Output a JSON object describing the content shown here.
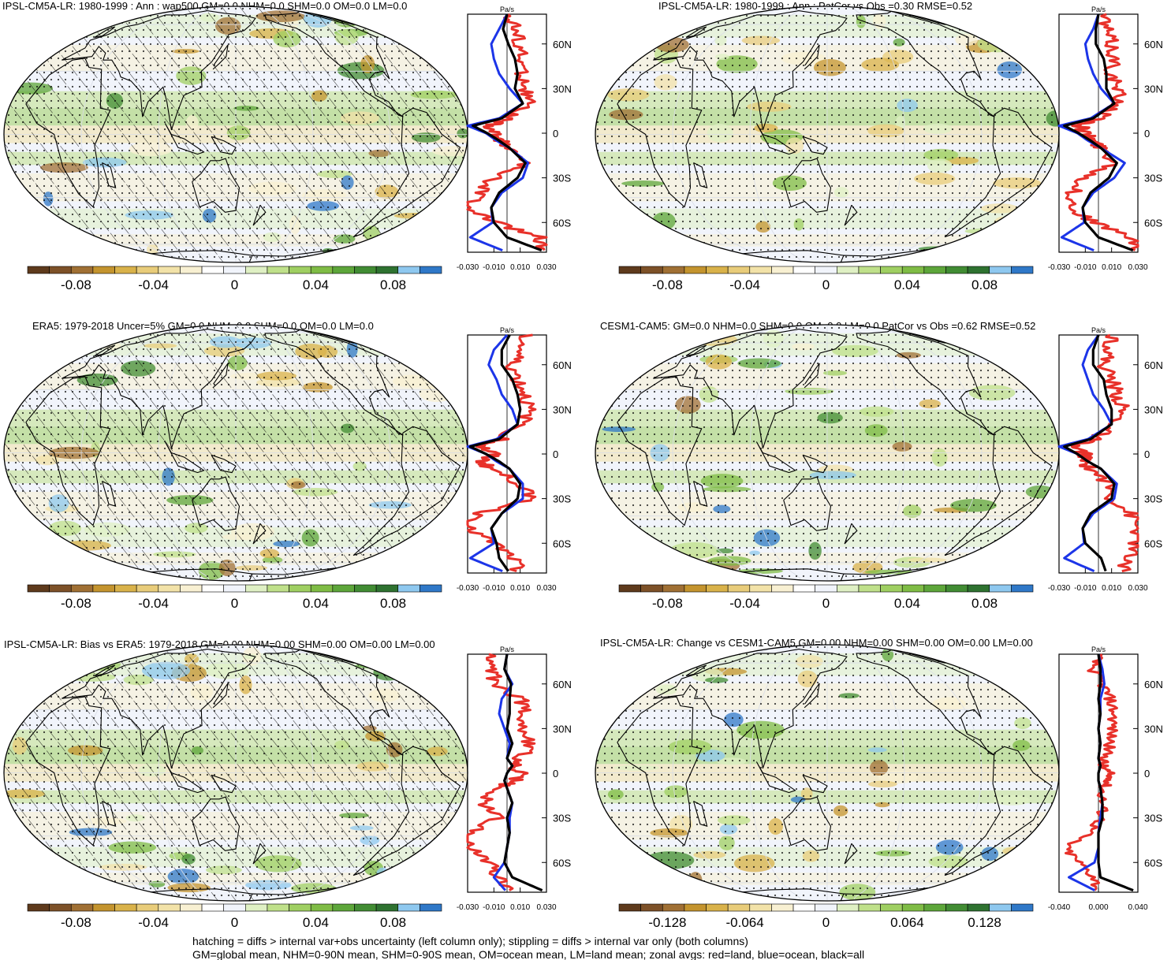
{
  "palette": [
    "#5e3a1c",
    "#7d5128",
    "#a07034",
    "#c4942e",
    "#d9b24a",
    "#e8cc7a",
    "#f2e2a8",
    "#f8f0d2",
    "#ffffff",
    "#f1f4fb",
    "#dff0c4",
    "#bfe08a",
    "#9fcf62",
    "#7fbc45",
    "#5da63a",
    "#418c33",
    "#2e7230",
    "#8ec8ef",
    "#2f78c8"
  ],
  "colors": {
    "land": "#e8312a",
    "ocean": "#1c35e8",
    "all": "#000000"
  },
  "units_label": "Pa/s",
  "panels": [
    {
      "title": "IPSL-CM5A-LR: 1980-1999 : Ann : wap500 GM=0.0 NHM=0.0 SHM=0.0 OM=0.0 LM=0.0",
      "hatching": true,
      "colorbar_ticks": [
        "-0.08",
        "-0.04",
        "0",
        "0.04",
        "0.08"
      ],
      "lat_labels": [
        "60N",
        "30N",
        "0",
        "30S",
        "60S"
      ],
      "x_ticks": [
        "-0.030",
        "-0.010",
        "0.010",
        "0.030"
      ]
    },
    {
      "title": "IPSL-CM5A-LR: 1980-1999 : Ann : PatCor vs Obs =0.30 RMSE=0.52",
      "hatching": false,
      "colorbar_ticks": [
        "-0.08",
        "-0.04",
        "0",
        "0.04",
        "0.08"
      ],
      "lat_labels": [
        "60N",
        "30N",
        "0",
        "30S",
        "60S"
      ],
      "x_ticks": [
        "-0.030",
        "-0.010",
        "0.010",
        "0.030"
      ]
    },
    {
      "title": "ERA5: 1979-2018 Uncer=5% GM=0.0 NHM=0.0 SHM=0.0 OM=0.0 LM=0.0",
      "hatching": true,
      "colorbar_ticks": [
        "-0.08",
        "-0.04",
        "0",
        "0.04",
        "0.08"
      ],
      "lat_labels": [
        "60N",
        "30N",
        "0",
        "30S",
        "60S"
      ],
      "x_ticks": [
        "-0.030",
        "-0.010",
        "0.010",
        "0.030"
      ]
    },
    {
      "title": "CESM1-CAM5: GM=0.0 NHM=0.0 SHM=0.0 OM=0.0 LM=0.0 PatCor vs Obs =0.62 RMSE=0.52",
      "hatching": false,
      "colorbar_ticks": [
        "-0.08",
        "-0.04",
        "0",
        "0.04",
        "0.08"
      ],
      "lat_labels": [
        "60N",
        "30N",
        "0",
        "30S",
        "60S"
      ],
      "x_ticks": [
        "-0.030",
        "-0.010",
        "0.010",
        "0.030"
      ]
    },
    {
      "title": "IPSL-CM5A-LR: Bias vs ERA5: 1979-2018 GM=0.00 NHM=0.00 SHM=0.00 OM=0.00 LM=0.00",
      "hatching": true,
      "colorbar_ticks": [
        "-0.08",
        "-0.04",
        "0",
        "0.04",
        "0.08"
      ],
      "lat_labels": [
        "60N",
        "30N",
        "0",
        "30S",
        "60S"
      ],
      "x_ticks": [
        "-0.030",
        "-0.010",
        "0.010",
        "0.030"
      ]
    },
    {
      "title": "IPSL-CM5A-LR: Change vs CESM1-CAM5 GM=0.00 NHM=0.00 SHM=0.00 OM=0.00 LM=0.00",
      "hatching": false,
      "colorbar_ticks": [
        "-0.128",
        "-0.064",
        "0",
        "0.064",
        "0.128"
      ],
      "lat_labels": [
        "60N",
        "30N",
        "0",
        "30S",
        "60S"
      ],
      "x_ticks": [
        "-0.040",
        "0.000",
        "0.040"
      ]
    }
  ],
  "footnote_1": "hatching = diffs > internal var+obs uncertainty (left column only); stippling = diffs > internal var only (both columns)",
  "footnote_2": "GM=global mean, NHM=0-90N mean, SHM=0-90S mean, OM=ocean mean, LM=land mean; zonal avgs: red=land, blue=ocean, black=all",
  "chart_data": {
    "type": "line",
    "description_of_series": "zonal averages of 500 hPa vertical velocity",
    "ylabels": [
      "60N",
      "30N",
      "0",
      "30S",
      "60S"
    ],
    "series": [
      {
        "name": "land",
        "color": "red"
      },
      {
        "name": "ocean",
        "color": "blue"
      },
      {
        "name": "all",
        "color": "black"
      }
    ],
    "profiles_lat": [
      80,
      70,
      60,
      50,
      40,
      30,
      20,
      10,
      5,
      0,
      -5,
      -10,
      -20,
      -30,
      -40,
      -50,
      -60,
      -70,
      -80
    ],
    "profiles": [
      {
        "panel": 1,
        "all": [
          0.0,
          -0.003,
          0.001,
          0.006,
          0.008,
          0.006,
          0.012,
          -0.004,
          -0.026,
          -0.015,
          -0.006,
          0.002,
          0.014,
          0.008,
          -0.006,
          -0.012,
          -0.01,
          0.0,
          0.03
        ],
        "ocean": [
          0.0,
          -0.006,
          -0.012,
          -0.01,
          -0.006,
          0.002,
          0.012,
          -0.006,
          -0.03,
          -0.016,
          -0.008,
          0.002,
          0.016,
          0.012,
          -0.004,
          -0.012,
          -0.011,
          -0.028,
          0.0
        ],
        "land": [
          0.002,
          0.006,
          0.01,
          0.01,
          0.012,
          0.014,
          0.016,
          0.0,
          -0.014,
          -0.01,
          -0.004,
          0.002,
          0.014,
          -0.01,
          -0.02,
          -0.03,
          -0.01,
          0.025,
          0.03
        ]
      },
      {
        "panel": 2,
        "all": [
          0.0,
          -0.002,
          -0.002,
          0.004,
          0.006,
          0.006,
          0.012,
          -0.004,
          -0.026,
          -0.015,
          -0.006,
          0.002,
          0.014,
          0.008,
          -0.006,
          -0.012,
          -0.01,
          0.0,
          0.03
        ],
        "ocean": [
          0.0,
          -0.004,
          -0.01,
          -0.008,
          -0.004,
          0.002,
          0.012,
          -0.006,
          -0.03,
          -0.016,
          -0.008,
          0.002,
          0.02,
          0.012,
          -0.004,
          -0.012,
          -0.011,
          -0.028,
          0.0
        ],
        "land": [
          0.004,
          0.006,
          0.01,
          0.012,
          0.01,
          0.014,
          0.016,
          0.0,
          -0.014,
          -0.01,
          -0.004,
          0.002,
          0.014,
          -0.01,
          -0.02,
          -0.02,
          -0.004,
          0.025,
          0.03
        ]
      },
      {
        "panel": 3,
        "all": [
          0.002,
          -0.004,
          -0.004,
          0.004,
          0.008,
          0.01,
          0.008,
          -0.006,
          -0.028,
          -0.016,
          -0.006,
          0.002,
          0.01,
          0.008,
          -0.004,
          -0.012,
          -0.008,
          -0.006,
          0.002
        ],
        "ocean": [
          0.0,
          -0.01,
          -0.014,
          -0.008,
          -0.004,
          0.004,
          0.008,
          -0.008,
          -0.03,
          -0.016,
          -0.008,
          0.002,
          0.012,
          0.012,
          -0.004,
          -0.012,
          -0.01,
          -0.028,
          0.0
        ],
        "land": [
          0.014,
          0.01,
          0.004,
          0.008,
          0.014,
          0.016,
          0.012,
          -0.004,
          -0.02,
          -0.01,
          -0.02,
          -0.012,
          0.01,
          0.02,
          -0.02,
          -0.03,
          -0.01,
          0.004,
          0.01
        ]
      },
      {
        "panel": 4,
        "all": [
          0.0,
          -0.004,
          -0.004,
          0.004,
          0.006,
          0.01,
          0.01,
          -0.006,
          -0.026,
          -0.016,
          -0.008,
          0.002,
          0.012,
          0.01,
          -0.006,
          -0.012,
          -0.01,
          0.002,
          0.006
        ],
        "ocean": [
          0.0,
          -0.008,
          -0.012,
          -0.008,
          -0.004,
          0.004,
          0.01,
          -0.008,
          -0.03,
          -0.016,
          -0.008,
          0.002,
          0.014,
          0.012,
          -0.004,
          -0.012,
          -0.011,
          -0.026,
          0.0
        ],
        "land": [
          0.012,
          0.008,
          0.004,
          0.01,
          0.014,
          0.018,
          0.012,
          -0.004,
          -0.02,
          -0.01,
          -0.012,
          -0.006,
          0.008,
          0.01,
          0.024,
          0.03,
          0.028,
          0.022,
          0.02
        ]
      },
      {
        "panel": 5,
        "all": [
          0.0,
          -0.002,
          0.003,
          0.002,
          0.002,
          0.0,
          0.004,
          0.0,
          0.004,
          0.0,
          -0.002,
          0.0,
          0.004,
          0.0,
          0.002,
          0.0,
          -0.002,
          0.004,
          0.03
        ],
        "ocean": [
          0.0,
          -0.002,
          0.004,
          -0.004,
          -0.006,
          -0.002,
          0.002,
          0.0,
          0.004,
          0.0,
          -0.002,
          0.0,
          0.004,
          0.002,
          0.002,
          0.0,
          -0.002,
          -0.01,
          0.0
        ],
        "land": [
          -0.014,
          -0.012,
          -0.008,
          0.01,
          0.014,
          0.012,
          0.018,
          0.01,
          0.004,
          0.01,
          0.006,
          -0.01,
          -0.018,
          -0.006,
          -0.03,
          -0.03,
          -0.012,
          -0.006,
          0.006
        ]
      },
      {
        "panel": 6,
        "all": [
          0.0,
          0.002,
          0.002,
          0.0,
          0.002,
          0.0,
          0.002,
          0.0,
          0.002,
          0.0,
          0.0,
          0.002,
          0.004,
          0.004,
          0.0,
          0.0,
          0.0,
          0.002,
          0.04
        ],
        "ocean": [
          0.0,
          0.004,
          0.006,
          0.002,
          0.002,
          0.0,
          0.002,
          0.0,
          0.002,
          0.0,
          0.0,
          0.002,
          0.004,
          0.002,
          0.0,
          0.0,
          -0.004,
          -0.03,
          0.0
        ],
        "land": [
          0.0,
          -0.006,
          0.004,
          0.012,
          0.016,
          0.014,
          0.012,
          0.006,
          0.004,
          0.01,
          0.012,
          0.004,
          0.004,
          0.004,
          -0.01,
          -0.034,
          -0.02,
          -0.004,
          0.0
        ]
      }
    ]
  }
}
